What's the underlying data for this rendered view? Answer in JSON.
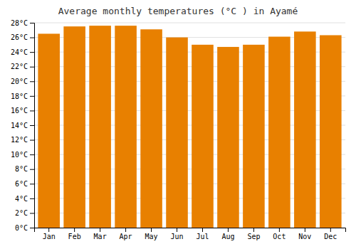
{
  "chart_data": {
    "type": "bar",
    "title": "Average monthly temperatures (°C ) in Ayamé",
    "categories": [
      "Jan",
      "Feb",
      "Mar",
      "Apr",
      "May",
      "Jun",
      "Jul",
      "Aug",
      "Sep",
      "Oct",
      "Nov",
      "Dec"
    ],
    "values": [
      26.5,
      27.5,
      27.6,
      27.6,
      27.1,
      26.0,
      25.0,
      24.7,
      25.0,
      26.1,
      26.8,
      26.3
    ],
    "color": "#E88000",
    "ylim": [
      0,
      28
    ],
    "yticks": [
      {
        "value": 0,
        "label": "0°C"
      },
      {
        "value": 2,
        "label": "2°C"
      },
      {
        "value": 4,
        "label": "4°C"
      },
      {
        "value": 6,
        "label": "6°C"
      },
      {
        "value": 8,
        "label": "8°C"
      },
      {
        "value": 10,
        "label": "10°C"
      },
      {
        "value": 12,
        "label": "12°C"
      },
      {
        "value": 14,
        "label": "14°C"
      },
      {
        "value": 16,
        "label": "16°C"
      },
      {
        "value": 18,
        "label": "18°C"
      },
      {
        "value": 20,
        "label": "20°C"
      },
      {
        "value": 22,
        "label": "22°C"
      },
      {
        "value": 24,
        "label": "24°C"
      },
      {
        "value": 26,
        "label": "26°C"
      },
      {
        "value": 28,
        "label": "28°C"
      }
    ],
    "grid": true
  }
}
